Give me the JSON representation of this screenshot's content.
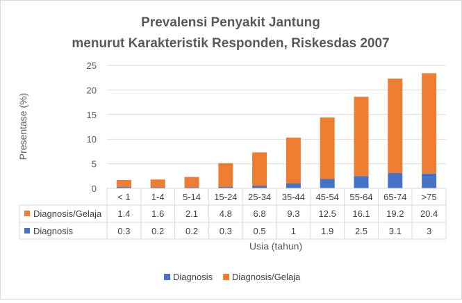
{
  "chart_data": {
    "type": "bar",
    "stacked": true,
    "title_line1": "Prevalensi Penyakit Jantung",
    "title_line2": "menurut Karakteristik Responden, Riskesdas 2007",
    "xlabel": "Usia (tahun)",
    "ylabel": "Presentase (%)",
    "ylim": [
      0,
      25
    ],
    "yticks": [
      "0",
      "5",
      "10",
      "15",
      "20",
      "25"
    ],
    "grid": true,
    "legend_position": "bottom",
    "categories": [
      "< 1",
      "1-4",
      "5-14",
      "15-24",
      "25-34",
      "35-44",
      "45-54",
      "55-64",
      "65-74",
      ">75"
    ],
    "series": [
      {
        "name": "Diagnosis",
        "color": "#4472c4",
        "values": [
          0.3,
          0.2,
          0.2,
          0.3,
          0.5,
          1,
          1.9,
          2.5,
          3.1,
          3
        ],
        "labels": [
          "0.3",
          "0.2",
          "0.2",
          "0.3",
          "0.5",
          "1",
          "1.9",
          "2.5",
          "3.1",
          "3"
        ]
      },
      {
        "name": "Diagnosis/Gelaja",
        "color": "#ed7d31",
        "values": [
          1.4,
          1.6,
          2.1,
          4.8,
          6.8,
          9.3,
          12.5,
          16.1,
          19.2,
          20.4
        ],
        "labels": [
          "1.4",
          "1.6",
          "2.1",
          "4.8",
          "6.8",
          "9.3",
          "12.5",
          "16.1",
          "19.2",
          "20.4"
        ]
      }
    ]
  }
}
